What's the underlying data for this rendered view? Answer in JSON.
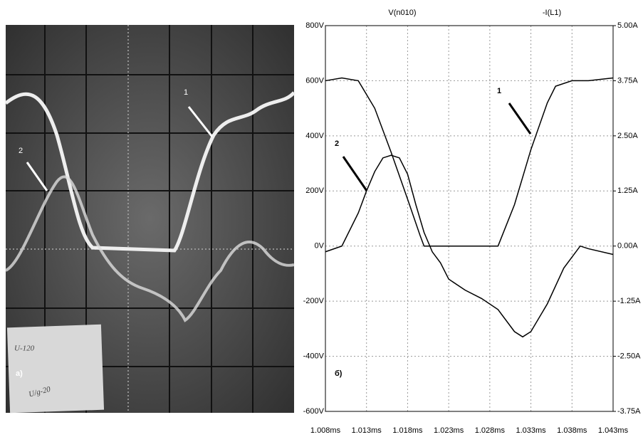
{
  "photo": {
    "labels": [
      "1",
      "2",
      "а)"
    ],
    "notes": [
      "U-120",
      "U/g-20"
    ]
  },
  "chart_data": {
    "type": "line",
    "annotations": [
      "1",
      "2",
      "б)"
    ],
    "series": [
      {
        "name": "V(n010)",
        "color": "#000000",
        "x": [
          1.008,
          1.01,
          1.012,
          1.014,
          1.016,
          1.018,
          1.0195,
          1.02,
          1.029,
          1.031,
          1.033,
          1.035,
          1.036,
          1.038,
          1.04,
          1.043
        ],
        "values": [
          600,
          610,
          600,
          500,
          340,
          170,
          40,
          0,
          0,
          150,
          350,
          520,
          580,
          600,
          600,
          610
        ]
      },
      {
        "name": "-I(L1)",
        "color": "#000000",
        "axis": "y2",
        "x": [
          1.008,
          1.01,
          1.012,
          1.013,
          1.014,
          1.015,
          1.016,
          1.017,
          1.018,
          1.019,
          1.02,
          1.021,
          1.022,
          1.023,
          1.025,
          1.027,
          1.029,
          1.031,
          1.032,
          1.033,
          1.035,
          1.037,
          1.039,
          1.04,
          1.043
        ],
        "values": [
          -0.13,
          0,
          0.75,
          1.25,
          1.69,
          2.0,
          2.06,
          2.0,
          1.63,
          0.94,
          0.31,
          -0.13,
          -0.38,
          -0.75,
          -1.0,
          -1.19,
          -1.44,
          -1.94,
          -2.06,
          -1.94,
          -1.31,
          -0.5,
          0,
          -0.06,
          -0.19
        ]
      }
    ],
    "xlim": [
      1.008,
      1.043
    ],
    "xticks": [
      {
        "value": 1.008,
        "label": "1.008ms"
      },
      {
        "value": 1.013,
        "label": "1.013ms"
      },
      {
        "value": 1.018,
        "label": "1.018ms"
      },
      {
        "value": 1.023,
        "label": "1.023ms"
      },
      {
        "value": 1.028,
        "label": "1.028ms"
      },
      {
        "value": 1.033,
        "label": "1.033ms"
      },
      {
        "value": 1.038,
        "label": "1.038ms"
      },
      {
        "value": 1.043,
        "label": "1.043ms"
      }
    ],
    "ylim": [
      -600,
      800
    ],
    "yticks": [
      {
        "value": -600,
        "label": "-600V"
      },
      {
        "value": -400,
        "label": "-400V"
      },
      {
        "value": -200,
        "label": "-200V"
      },
      {
        "value": 0,
        "label": "0V"
      },
      {
        "value": 200,
        "label": "200V"
      },
      {
        "value": 400,
        "label": "400V"
      },
      {
        "value": 600,
        "label": "600V"
      },
      {
        "value": 800,
        "label": "800V"
      }
    ],
    "y2lim": [
      -3.75,
      5.0
    ],
    "y2ticks": [
      {
        "value": -3.75,
        "label": "-3.75A"
      },
      {
        "value": -2.5,
        "label": "-2.50A"
      },
      {
        "value": -1.25,
        "label": "-1.25A"
      },
      {
        "value": 0,
        "label": "0.00A"
      },
      {
        "value": 1.25,
        "label": "1.25A"
      },
      {
        "value": 2.5,
        "label": "2.50A"
      },
      {
        "value": 3.75,
        "label": "3.75A"
      },
      {
        "value": 5.0,
        "label": "5.00A"
      }
    ],
    "grid": true
  }
}
